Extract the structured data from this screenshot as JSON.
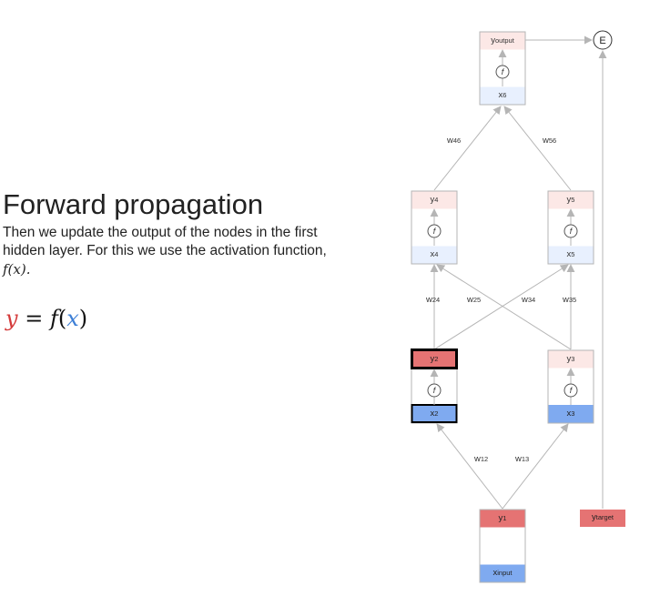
{
  "heading": "Forward propagation",
  "description": "Then we update the output of the nodes in the first hidden layer. For this we use the activation function,",
  "inline_math": "f(x).",
  "formula": {
    "y": "y",
    "eq": " = ",
    "f": "f",
    "open": "(",
    "x": "x",
    "close": ")"
  },
  "colors": {
    "y_light": "#fce8e6",
    "x_light": "#e8f0fe",
    "y_active": "#e57373",
    "x_active": "#7faaf0",
    "edge": "#b5b5b5"
  },
  "diagram": {
    "activation_label": "f",
    "error_label": "E",
    "nodes": {
      "n6": {
        "y_label": "y",
        "y_sub": "output",
        "x_label": "x",
        "x_sub": "6"
      },
      "n4": {
        "y_label": "y",
        "y_sub": "4",
        "x_label": "x",
        "x_sub": "4"
      },
      "n5": {
        "y_label": "y",
        "y_sub": "5",
        "x_label": "x",
        "x_sub": "5"
      },
      "n2": {
        "y_label": "y",
        "y_sub": "2",
        "x_label": "x",
        "x_sub": "2"
      },
      "n3": {
        "y_label": "y",
        "y_sub": "3",
        "x_label": "x",
        "x_sub": "3"
      },
      "n1": {
        "y_label": "y",
        "y_sub": "1",
        "x_label": "x",
        "x_sub": "input"
      },
      "target": {
        "y_label": "y",
        "y_sub": "target"
      }
    },
    "weights": {
      "w46": {
        "label": "w",
        "sub": "46"
      },
      "w56": {
        "label": "w",
        "sub": "56"
      },
      "w24": {
        "label": "w",
        "sub": "24"
      },
      "w25": {
        "label": "w",
        "sub": "25"
      },
      "w34": {
        "label": "w",
        "sub": "34"
      },
      "w35": {
        "label": "w",
        "sub": "35"
      },
      "w12": {
        "label": "w",
        "sub": "12"
      },
      "w13": {
        "label": "w",
        "sub": "13"
      }
    }
  }
}
